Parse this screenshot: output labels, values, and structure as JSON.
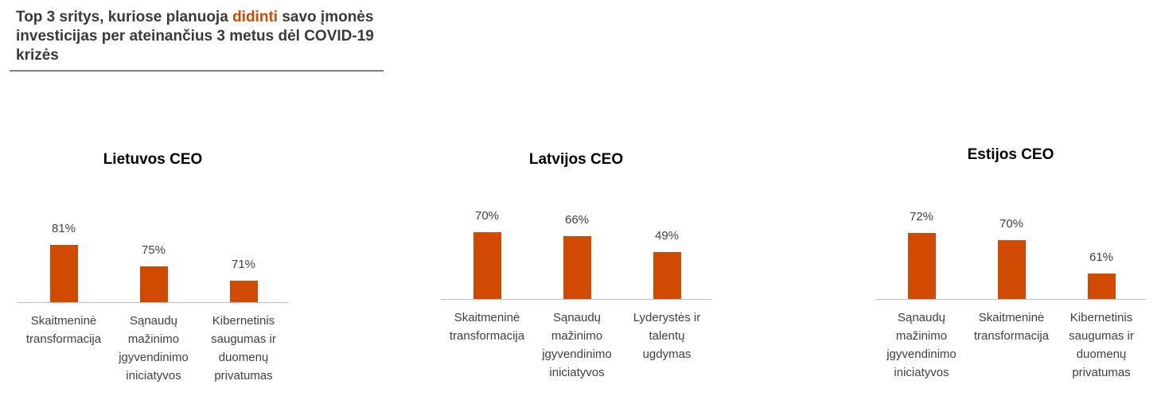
{
  "title": {
    "before": "Top 3 sritys, kuriose planuoja ",
    "highlight": "didinti",
    "after": " savo įmonės investicijas per ateinančius 3 metus dėl COVID-19 krizės",
    "highlight_color": "#d04a02"
  },
  "chart_data": [
    {
      "type": "bar",
      "title": "Lietuvos CEO",
      "categories": [
        "Skaitmeninė\ntransformacija",
        "Sąnaudų\nmažinimo\njgyvendinimo\niniciatyvos",
        "Kibernetinis\nsaugumas ir\nduomenų\nprivatumas"
      ],
      "values": [
        81,
        75,
        71
      ],
      "data_labels": [
        "81%",
        "75%",
        "71%"
      ],
      "ylim": [
        65,
        95
      ],
      "color": "#d04a02",
      "grid": false
    },
    {
      "type": "bar",
      "title": "Latvijos CEO",
      "categories": [
        "Skaitmeninė\ntransformacija",
        "Sąnaudų\nmažinimo\njgyvendinimo\niniciatyvos",
        "Lyderystės ir\ntalentų\nugdymas"
      ],
      "values": [
        70,
        66,
        49
      ],
      "data_labels": [
        "70%",
        "66%",
        "49%"
      ],
      "ylim": [
        0,
        100
      ],
      "color": "#d04a02",
      "grid": false
    },
    {
      "type": "bar",
      "title": "Estijos CEO",
      "categories": [
        "Sąnaudų\nmažinimo\njgyvendinimo\niniciatyvos",
        "Skaitmeninė\ntransformacija",
        "Kibernetinis\nsaugumas ir\nduomenų\nprivatumas"
      ],
      "values": [
        72,
        70,
        61
      ],
      "data_labels": [
        "72%",
        "70%",
        "61%"
      ],
      "ylim": [
        54,
        80
      ],
      "color": "#d04a02",
      "grid": false
    }
  ]
}
